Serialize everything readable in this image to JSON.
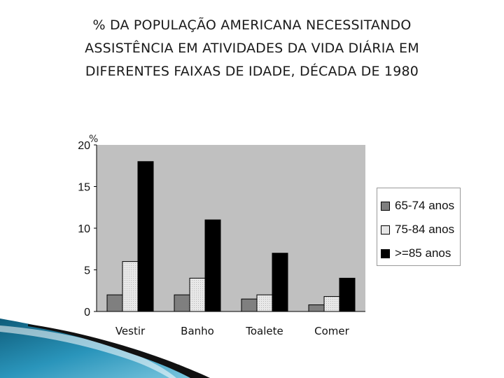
{
  "title_lines": [
    "% DA POPULAÇÃO AMERICANA NECESSITANDO",
    "ASSISTÊNCIA EM ATIVIDADES DA VIDA DIÁRIA EM",
    "DIFERENTES FAIXAS DE IDADE, DÉCADA DE 1980"
  ],
  "chart_data": {
    "type": "bar",
    "title": "% DA POPULAÇÃO AMERICANA NECESSITANDO ASSISTÊNCIA EM ATIVIDADES DA VIDA DIÁRIA EM DIFERENTES FAIXAS DE IDADE, DÉCADA DE 1980",
    "ylabel": "%",
    "xlabel": "",
    "categories": [
      "Vestir",
      "Banho",
      "Toalete",
      "Comer"
    ],
    "series": [
      {
        "name": "65-74 anos",
        "values": [
          2,
          2,
          1.5,
          0.8
        ],
        "color": "#7f7f7f"
      },
      {
        "name": "75-84 anos",
        "values": [
          6,
          4,
          2,
          1.8
        ],
        "color": "#e6e6e6"
      },
      {
        "name": ">=85 anos",
        "values": [
          18,
          11,
          7,
          4
        ],
        "color": "#000000"
      }
    ],
    "ylim": [
      0,
      20
    ],
    "yticks": [
      "0",
      "5",
      "10",
      "15",
      "20"
    ],
    "grid": false,
    "plot_background": "#c0c0c0",
    "legend_position": "right"
  }
}
